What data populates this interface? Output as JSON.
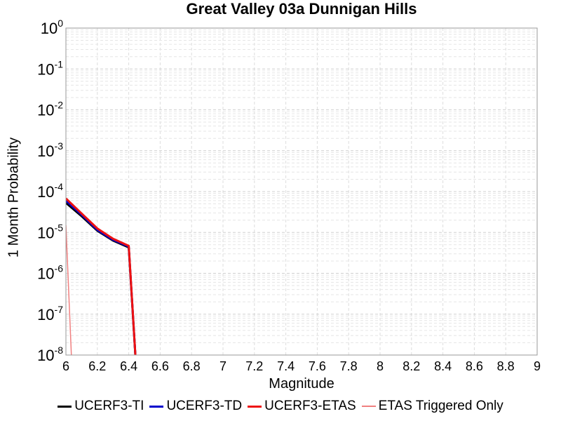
{
  "chart_data": {
    "type": "line",
    "title": "Great Valley 03a Dunnigan Hills",
    "xlabel": "Magnitude",
    "ylabel": "1 Month Probability",
    "x_scale": "linear",
    "y_scale": "log",
    "xlim": [
      6,
      9
    ],
    "ylim": [
      1e-08,
      1
    ],
    "grid": true,
    "legend_position": "bottom",
    "x_ticks": [
      "6",
      "6.2",
      "6.4",
      "6.6",
      "6.8",
      "7",
      "7.2",
      "7.4",
      "7.6",
      "7.8",
      "8",
      "8.2",
      "8.4",
      "8.6",
      "8.8",
      "9"
    ],
    "y_ticks": [
      {
        "base": "10",
        "exp": "0"
      },
      {
        "base": "10",
        "exp": "-1"
      },
      {
        "base": "10",
        "exp": "-2"
      },
      {
        "base": "10",
        "exp": "-3"
      },
      {
        "base": "10",
        "exp": "-4"
      },
      {
        "base": "10",
        "exp": "-5"
      },
      {
        "base": "10",
        "exp": "-6"
      },
      {
        "base": "10",
        "exp": "-7"
      },
      {
        "base": "10",
        "exp": "-8"
      }
    ],
    "series": [
      {
        "name": "UCERF3-TI",
        "color": "#000000",
        "x": [
          6.0,
          6.1,
          6.2,
          6.3,
          6.4,
          6.45
        ],
        "y": [
          5.3e-05,
          2.5e-05,
          1.1e-05,
          6.3e-06,
          4.3e-06,
          1e-09
        ]
      },
      {
        "name": "UCERF3-TD",
        "color": "#0000cc",
        "x": [
          6.0,
          6.1,
          6.2,
          6.3,
          6.4,
          6.45
        ],
        "y": [
          6e-05,
          2.7e-05,
          1.15e-05,
          6.6e-06,
          4.5e-06,
          1e-09
        ]
      },
      {
        "name": "UCERF3-ETAS",
        "color": "#ee1111",
        "x": [
          6.0,
          6.1,
          6.2,
          6.3,
          6.4,
          6.45
        ],
        "y": [
          6.8e-05,
          2.9e-05,
          1.25e-05,
          7e-06,
          4.7e-06,
          1e-09
        ]
      },
      {
        "name": "ETAS Triggered Only",
        "color": "#f08080",
        "x": [
          6.0,
          6.04
        ],
        "y": [
          1.5e-05,
          1e-09
        ]
      }
    ]
  }
}
